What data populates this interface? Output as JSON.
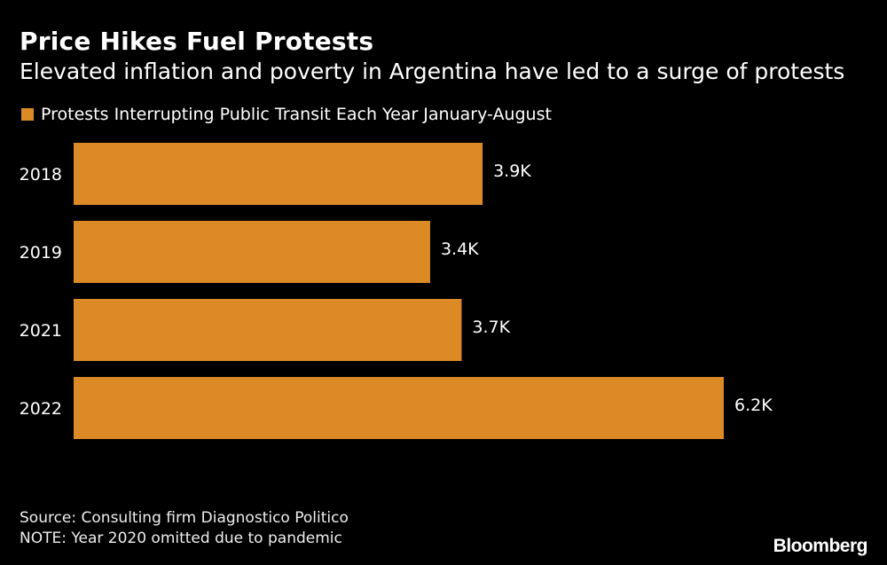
{
  "title": "Price Hikes Fuel Protests",
  "subtitle": "Elevated inflation and poverty in Argentina have led to a surge of protests",
  "source": "Source: Consulting firm Diagnostico Politico",
  "note": "NOTE: Year 2020 omitted due to pandemic",
  "logo": "Bloomberg",
  "colors": {
    "bar": "#dc8a26",
    "background": "#000000",
    "text": "#ffffff"
  },
  "chart_data": {
    "type": "bar",
    "orientation": "horizontal",
    "categories": [
      "2018",
      "2019",
      "2021",
      "2022"
    ],
    "series": [
      {
        "name": "Protests Interrupting Public Transit Each Year January-August",
        "values": [
          3.9,
          3.4,
          3.7,
          6.2
        ]
      }
    ],
    "data_labels": [
      "3.9K",
      "3.4K",
      "3.7K",
      "6.2K"
    ],
    "xlim": [
      0,
      6.2
    ],
    "grid": false,
    "legend": "top-left"
  }
}
